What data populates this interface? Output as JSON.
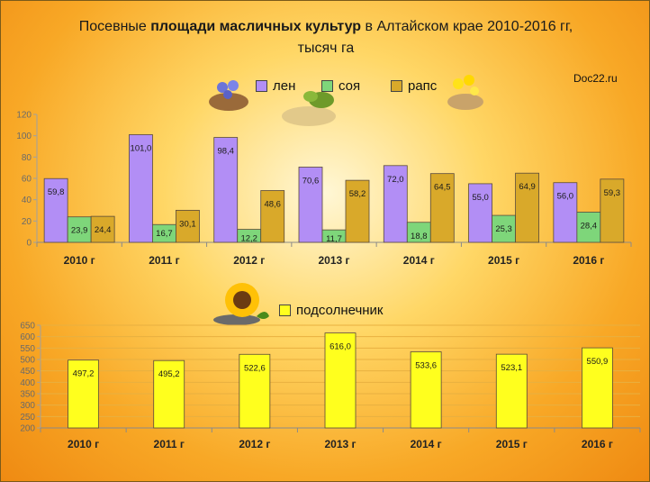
{
  "title": {
    "line1_pre": "Посевные ",
    "line1_bold": "площади масличных культур",
    "line1_post": " в Алтайском крае  2010-2016 гг,",
    "line2": "тысяч га"
  },
  "source_label": "Doc22.ru",
  "colors": {
    "len": "#b28ef5",
    "soya": "#7ed67a",
    "raps": "#d9a92a",
    "podsolnechnik": "#ffff1e"
  },
  "chart_data": [
    {
      "type": "bar",
      "categories": [
        "2010 г",
        "2011 г",
        "2012 г",
        "2013 г",
        "2014 г",
        "2015 г",
        "2016 г"
      ],
      "series": [
        {
          "name": "лен",
          "values": [
            59.8,
            101.0,
            98.4,
            70.6,
            72.0,
            55.0,
            56.0
          ],
          "labels": [
            "59,8",
            "101,0",
            "98,4",
            "70,6",
            "72,0",
            "55,0",
            "56,0"
          ]
        },
        {
          "name": "соя",
          "values": [
            23.9,
            16.7,
            12.2,
            11.7,
            18.8,
            25.3,
            28.4
          ],
          "labels": [
            "23,9",
            "16,7",
            "12,2",
            "11,7",
            "18,8",
            "25,3",
            "28,4"
          ]
        },
        {
          "name": "рапс",
          "values": [
            24.4,
            30.1,
            48.6,
            58.2,
            64.5,
            64.9,
            59.3
          ],
          "labels": [
            "24,4",
            "30,1",
            "48,6",
            "58,2",
            "64,5",
            "64,9",
            "59,3"
          ]
        }
      ],
      "ylim": [
        0,
        120
      ],
      "yticks": [
        "0",
        "20",
        "40",
        "60",
        "80",
        "100",
        "120"
      ],
      "legend": "top",
      "grid": false
    },
    {
      "type": "bar",
      "categories": [
        "2010 г",
        "2011 г",
        "2012 г",
        "2013 г",
        "2014 г",
        "2015 г",
        "2016 г"
      ],
      "series": [
        {
          "name": "подсолнечник",
          "values": [
            497.2,
            495.2,
            522.6,
            616.0,
            533.6,
            523.1,
            550.9
          ],
          "labels": [
            "497,2",
            "495,2",
            "522,6",
            "616,0",
            "533,6",
            "523,1",
            "550,9"
          ]
        }
      ],
      "ylim": [
        200,
        650
      ],
      "yticks": [
        "200",
        "250",
        "300",
        "350",
        "400",
        "450",
        "500",
        "550",
        "600",
        "650"
      ],
      "legend": "top",
      "grid": true
    }
  ]
}
